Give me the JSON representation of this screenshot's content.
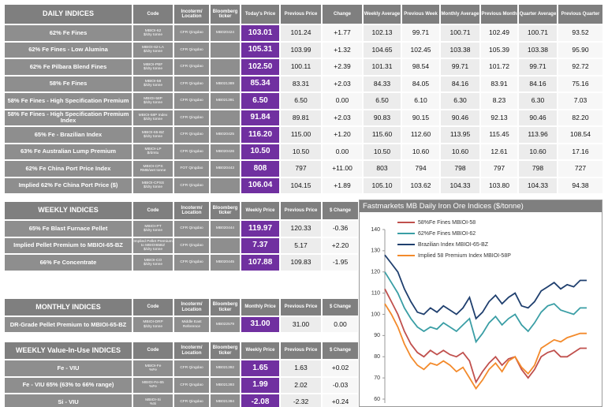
{
  "daily": {
    "header": [
      "DAILY INDICES",
      "Code",
      "Incoterm/ Location",
      "Bloomberg ticker",
      "Today's Price",
      "Previous Price",
      "Change",
      "Weekly Average",
      "Previous Week",
      "Monthly Average",
      "Previous Month",
      "Quarter Average",
      "Previous Quarter"
    ],
    "rows": [
      {
        "name": "62% Fe Fines",
        "code": "MBIOI-62",
        "unit": "$/dry tonne",
        "location": "CFR Qingdao",
        "ticker": "MB020424",
        "values": [
          "103.01",
          "101.24",
          "+1.77",
          "102.13",
          "99.71",
          "100.71",
          "102.49",
          "100.71",
          "93.52"
        ]
      },
      {
        "name": "62% Fe Fines - Low Alumina",
        "code": "MBIOI-62-LA",
        "unit": "$/dry tonne",
        "location": "CFR Qingdao",
        "values": [
          "105.31",
          "103.99",
          "+1.32",
          "104.65",
          "102.45",
          "103.38",
          "105.39",
          "103.38",
          "95.90"
        ]
      },
      {
        "name": "62% Fe Pilbara Blend Fines",
        "code": "MBIOI-PBF",
        "unit": "$/dry tonne",
        "location": "CFR Qingdao",
        "values": [
          "102.50",
          "100.11",
          "+2.39",
          "101.31",
          "98.54",
          "99.71",
          "101.72",
          "99.71",
          "92.72"
        ]
      },
      {
        "name": "58% Fe Fines",
        "code": "MBIOI-58",
        "unit": "$/dry tonne",
        "location": "CFR Qingdao",
        "ticker": "MB021389",
        "values": [
          "85.34",
          "83.31",
          "+2.03",
          "84.33",
          "84.05",
          "84.16",
          "83.91",
          "84.16",
          "75.16"
        ]
      },
      {
        "name": "58% Fe Fines - High Specification Premium",
        "code": "MBIOI-58P",
        "unit": "$/dry tonne",
        "location": "CFR Qingdao",
        "ticker": "MB021391",
        "values": [
          "6.50",
          "6.50",
          "0.00",
          "6.50",
          "6.10",
          "6.30",
          "8.23",
          "6.30",
          "7.03"
        ]
      },
      {
        "name": "58% Fe Fines - High Specification Premium Index",
        "code": "MBIOI-58P Index",
        "unit": "$/dry tonne",
        "location": "CFR Qingdao",
        "values": [
          "91.84",
          "89.81",
          "+2.03",
          "90.83",
          "90.15",
          "90.46",
          "92.13",
          "90.46",
          "82.20"
        ]
      },
      {
        "name": "65% Fe - Brazilian Index",
        "code": "MBIOI-65-BZ",
        "unit": "$/dry tonne",
        "location": "CFR Qingdao",
        "ticker": "MB020425",
        "values": [
          "116.20",
          "115.00",
          "+1.20",
          "115.60",
          "112.60",
          "113.95",
          "115.45",
          "113.96",
          "108.54"
        ]
      },
      {
        "name": "63% Fe Australian Lump Premium",
        "code": "MBIOI-LP",
        "unit": "$/dmtu",
        "location": "CFR Qingdao",
        "ticker": "MB020426",
        "values": [
          "10.50",
          "10.50",
          "0.00",
          "10.50",
          "10.60",
          "10.60",
          "12.61",
          "10.60",
          "17.16"
        ]
      },
      {
        "name": "62% Fe China Port Price Index",
        "code": "MBIOI-CPS",
        "unit": "RMB/wet tonne",
        "location": "FOT Qingdao",
        "ticker": "MB020443",
        "values": [
          "808",
          "797",
          "+11.00",
          "803",
          "794",
          "798",
          "797",
          "798",
          "727"
        ]
      },
      {
        "name": "Implied 62% Fe China Port Price  ($)",
        "code": "MBIOI-CPSS",
        "unit": "$/dry tonne",
        "location": "CFR Qingdao",
        "values": [
          "106.04",
          "104.15",
          "+1.89",
          "105.10",
          "103.62",
          "104.33",
          "103.80",
          "104.33",
          "94.38"
        ]
      }
    ]
  },
  "weekly": {
    "header": [
      "WEEKLY INDICES",
      "Code",
      "Incoterm/ Location",
      "Bloomberg ticker",
      "Weekly Price",
      "Previous Price",
      "$ Change"
    ],
    "rows": [
      {
        "name": "65% Fe Blast Furnace Pellet",
        "code": "MBIOI-PT",
        "unit": "$/dry tonne",
        "location": "CFR Qingdao",
        "ticker": "MB020444",
        "values": [
          "119.97",
          "120.33",
          "-0.36"
        ]
      },
      {
        "name": "Implied Pellet Premium to MBIOI-65-BZ",
        "code": "Implied Pellet Premium to MBIOI65BZ",
        "unit": "$/dry tonne",
        "location": "CFR Qingdao",
        "values": [
          "7.37",
          "5.17",
          "+2.20"
        ]
      },
      {
        "name": "66% Fe Concentrate",
        "code": "MBIOI-CO",
        "unit": "$/dry tonne",
        "location": "CFR Qingdao",
        "ticker": "MB020445",
        "values": [
          "107.88",
          "109.83",
          "-1.95"
        ]
      }
    ]
  },
  "monthly": {
    "header": [
      "MONTHLY INDICES",
      "Code",
      "Incoterm/ Location",
      "Bloomberg ticker",
      "Monthly Price",
      "Previous Price",
      "$ Change"
    ],
    "rows": [
      {
        "name": "DR-Grade Pellet Premium to MBIOI-65-BZ",
        "code": "MBIOI-DRP",
        "unit": "$/dry tonne",
        "location": "Middle East Reference",
        "ticker": "MB022579",
        "values": [
          "31.00",
          "31.00",
          "0.00"
        ]
      }
    ]
  },
  "viu": {
    "header": [
      "WEEKLY Value-In-Use INDICES",
      "Code",
      "Incoterm/ Location",
      "Bloomberg ticker",
      "Weekly Price",
      "Previous Price",
      "$ Change"
    ],
    "rows": [
      {
        "name": "Fe - VIU",
        "code": "MBIOI-Fe",
        "unit": "%Fe",
        "location": "CFR Qingdao",
        "ticker": "MB021392",
        "values": [
          "1.65",
          "1.63",
          "+0.02"
        ]
      },
      {
        "name": "Fe - VIU 65% (63% to 66% range)",
        "code": "MBIOI-Fe-65",
        "unit": "%Fe",
        "location": "CFR Qingdao",
        "ticker": "MB021393",
        "values": [
          "1.99",
          "2.02",
          "-0.03"
        ]
      },
      {
        "name": "Si - VIU",
        "code": "MBIOI-Si",
        "unit": "%Si",
        "location": "CFR Qingdao",
        "ticker": "MB021394",
        "values": [
          "-2.08",
          "-2.32",
          "+0.24"
        ]
      }
    ]
  },
  "chart_data": {
    "type": "line",
    "title": "Fastmarkets MB Daily Iron Ore Indices ($/tonne)",
    "ylim": [
      60,
      140
    ],
    "yticks": [
      60,
      70,
      80,
      90,
      100,
      110,
      120,
      130,
      140
    ],
    "grid": false,
    "legend": "upper-left",
    "series": [
      {
        "name": "58%Fe Fines MBIOI-58",
        "color": "#c0504d",
        "values": [
          112,
          106,
          100,
          92,
          86,
          82,
          80,
          83,
          81,
          83,
          81,
          80,
          82,
          78,
          68,
          73,
          77,
          80,
          76,
          79,
          80,
          74,
          70,
          74,
          80,
          82,
          83,
          80,
          80,
          82,
          84,
          84
        ]
      },
      {
        "name": "62%Fe Fines MBIOI-62",
        "color": "#3a9ea5",
        "values": [
          120,
          115,
          110,
          103,
          98,
          94,
          92,
          94,
          93,
          96,
          94,
          92,
          95,
          98,
          87,
          91,
          96,
          99,
          95,
          98,
          100,
          95,
          92,
          96,
          101,
          104,
          105,
          102,
          101,
          100,
          103,
          103
        ]
      },
      {
        "name": "Brazilian Index MBIOI-65-BZ",
        "color": "#1f3f6e",
        "values": [
          128,
          124,
          120,
          112,
          106,
          101,
          100,
          103,
          101,
          104,
          102,
          100,
          103,
          108,
          98,
          101,
          106,
          109,
          105,
          108,
          110,
          104,
          103,
          106,
          111,
          113,
          115,
          112,
          114,
          113,
          116,
          116
        ]
      },
      {
        "name": "Implied 58 Premium Index MBIOI-58P",
        "color": "#f38a2b",
        "values": [
          105,
          100,
          94,
          86,
          80,
          76,
          74,
          77,
          76,
          78,
          76,
          73,
          75,
          70,
          65,
          69,
          74,
          77,
          73,
          78,
          80,
          75,
          72,
          76,
          84,
          86,
          88,
          87,
          89,
          90,
          91,
          91
        ]
      }
    ]
  }
}
